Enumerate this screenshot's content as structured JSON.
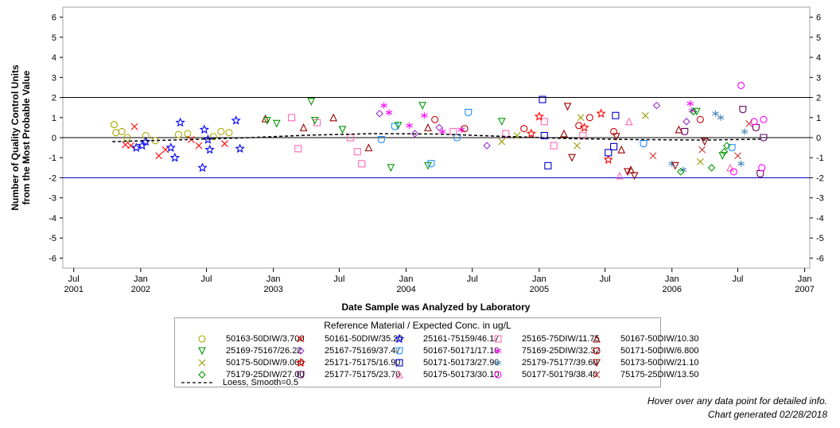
{
  "chart_data": {
    "type": "scatter",
    "title": "",
    "xlabel": "Date Sample was Analyzed by Laboratory",
    "ylabel_lines": [
      "Number of Quality Control Units",
      "from the Most Probable Value"
    ],
    "ylim": [
      -6.5,
      6.5
    ],
    "yticks": [
      6,
      5,
      4,
      3,
      2,
      1,
      0,
      -1,
      -2,
      -3,
      -4,
      -5,
      -6
    ],
    "xlim": [
      "2001-06-01",
      "2007-01-15"
    ],
    "xticks": [
      {
        "date": "2001-07-01",
        "label1": "Jul",
        "label2": "2001"
      },
      {
        "date": "2002-01-01",
        "label1": "Jan",
        "label2": "2002"
      },
      {
        "date": "2002-07-01",
        "label1": "Jul",
        "label2": ""
      },
      {
        "date": "2003-01-01",
        "label1": "Jan",
        "label2": "2003"
      },
      {
        "date": "2003-07-01",
        "label1": "Jul",
        "label2": ""
      },
      {
        "date": "2004-01-01",
        "label1": "Jan",
        "label2": "2004"
      },
      {
        "date": "2004-07-01",
        "label1": "Jul",
        "label2": ""
      },
      {
        "date": "2005-01-01",
        "label1": "Jan",
        "label2": "2005"
      },
      {
        "date": "2005-07-01",
        "label1": "Jul",
        "label2": ""
      },
      {
        "date": "2006-01-01",
        "label1": "Jan",
        "label2": "2006"
      },
      {
        "date": "2006-07-01",
        "label1": "Jul",
        "label2": ""
      },
      {
        "date": "2007-01-01",
        "label1": "Jan",
        "label2": "2007"
      }
    ],
    "reference_lines": [
      {
        "y": 2,
        "color": "#000000"
      },
      {
        "y": 0,
        "color": "#000000"
      },
      {
        "y": -2,
        "color": "#0000cc"
      }
    ],
    "legend": {
      "title": "Reference Material / Expected Conc. in ug/L",
      "placement": "bottom",
      "loess_label": "Loess, Smooth=0.5"
    },
    "loess": [
      {
        "x": "2001-10-15",
        "y": -0.2
      },
      {
        "x": "2002-04-01",
        "y": -0.12
      },
      {
        "x": "2002-10-01",
        "y": -0.02
      },
      {
        "x": "2003-04-01",
        "y": 0.12
      },
      {
        "x": "2003-10-01",
        "y": 0.2
      },
      {
        "x": "2004-04-01",
        "y": 0.18
      },
      {
        "x": "2004-10-01",
        "y": 0.06
      },
      {
        "x": "2005-04-01",
        "y": -0.05
      },
      {
        "x": "2005-10-01",
        "y": -0.1
      },
      {
        "x": "2006-04-01",
        "y": -0.12
      },
      {
        "x": "2006-09-01",
        "y": -0.08
      }
    ],
    "series": [
      {
        "name": "50163-50DIW/3.700",
        "color": "#a8a800",
        "marker": "circle",
        "points": [
          {
            "x": "2001-10-20",
            "y": 0.65
          },
          {
            "x": "2001-10-25",
            "y": 0.25
          },
          {
            "x": "2001-11-10",
            "y": 0.3
          },
          {
            "x": "2001-11-25",
            "y": 0.0
          },
          {
            "x": "2002-01-15",
            "y": 0.1
          },
          {
            "x": "2002-02-10",
            "y": -0.15
          },
          {
            "x": "2002-04-15",
            "y": 0.15
          },
          {
            "x": "2002-05-10",
            "y": 0.2
          },
          {
            "x": "2002-07-20",
            "y": 0.05
          },
          {
            "x": "2002-08-10",
            "y": 0.3
          },
          {
            "x": "2002-09-01",
            "y": 0.25
          }
        ]
      },
      {
        "name": "50161-50DIW/35.20",
        "color": "#ff0000",
        "marker": "x",
        "points": [
          {
            "x": "2001-11-20",
            "y": -0.35
          },
          {
            "x": "2001-12-05",
            "y": -0.4
          },
          {
            "x": "2001-12-15",
            "y": 0.55
          },
          {
            "x": "2002-02-20",
            "y": -0.9
          },
          {
            "x": "2002-03-10",
            "y": -0.6
          },
          {
            "x": "2002-05-20",
            "y": -0.1
          },
          {
            "x": "2002-06-10",
            "y": -0.4
          },
          {
            "x": "2002-08-20",
            "y": -0.3
          }
        ]
      },
      {
        "name": "25161-75159/46.17",
        "color": "#0000ff",
        "marker": "star",
        "points": [
          {
            "x": "2001-12-20",
            "y": -0.5
          },
          {
            "x": "2002-01-05",
            "y": -0.4
          },
          {
            "x": "2002-01-15",
            "y": -0.2
          },
          {
            "x": "2002-03-25",
            "y": -0.5
          },
          {
            "x": "2002-04-05",
            "y": -1.0
          },
          {
            "x": "2002-04-20",
            "y": 0.75
          },
          {
            "x": "2002-06-20",
            "y": -1.5
          },
          {
            "x": "2002-06-25",
            "y": 0.4
          },
          {
            "x": "2002-07-05",
            "y": -0.1
          },
          {
            "x": "2002-07-10",
            "y": -0.6
          },
          {
            "x": "2002-09-20",
            "y": 0.85
          },
          {
            "x": "2002-10-01",
            "y": -0.55
          }
        ]
      },
      {
        "name": "25165-75DIW/11.75",
        "color": "#ff69b4",
        "marker": "square",
        "points": [
          {
            "x": "2003-02-20",
            "y": 1.0
          },
          {
            "x": "2003-03-10",
            "y": -0.55
          },
          {
            "x": "2003-05-01",
            "y": 0.75
          },
          {
            "x": "2003-08-01",
            "y": 0.0
          },
          {
            "x": "2003-08-20",
            "y": -0.7
          },
          {
            "x": "2003-09-01",
            "y": -1.3
          },
          {
            "x": "2004-05-10",
            "y": 0.3
          },
          {
            "x": "2004-10-01",
            "y": 0.2
          },
          {
            "x": "2005-01-15",
            "y": 0.8
          },
          {
            "x": "2005-02-10",
            "y": -0.4
          },
          {
            "x": "2005-05-01",
            "y": 0.1
          }
        ]
      },
      {
        "name": "50167-50DIW/10.30",
        "color": "#990000",
        "marker": "triangle",
        "points": [
          {
            "x": "2002-12-10",
            "y": 0.95
          },
          {
            "x": "2003-03-25",
            "y": 0.5
          },
          {
            "x": "2003-06-15",
            "y": 1.0
          },
          {
            "x": "2003-09-20",
            "y": -0.5
          },
          {
            "x": "2004-03-01",
            "y": 0.5
          },
          {
            "x": "2005-03-10",
            "y": 0.2
          },
          {
            "x": "2005-08-15",
            "y": -0.6
          },
          {
            "x": "2005-09-10",
            "y": -1.6
          },
          {
            "x": "2006-01-20",
            "y": 0.4
          }
        ]
      },
      {
        "name": "25169-75167/26.22",
        "color": "#009900",
        "marker": "triangle-down",
        "points": [
          {
            "x": "2002-12-15",
            "y": 0.85
          },
          {
            "x": "2003-01-10",
            "y": 0.7
          },
          {
            "x": "2003-04-15",
            "y": 1.8
          },
          {
            "x": "2003-04-25",
            "y": 0.85
          },
          {
            "x": "2003-07-10",
            "y": 0.4
          },
          {
            "x": "2003-11-20",
            "y": -1.5
          },
          {
            "x": "2003-12-10",
            "y": 0.6
          },
          {
            "x": "2004-02-15",
            "y": 1.6
          },
          {
            "x": "2004-03-01",
            "y": -1.4
          },
          {
            "x": "2004-09-20",
            "y": 0.8
          },
          {
            "x": "2006-03-10",
            "y": 1.3
          },
          {
            "x": "2006-05-20",
            "y": -0.9
          }
        ]
      },
      {
        "name": "25167-75169/37.47",
        "color": "#9932cc",
        "marker": "diamond",
        "points": [
          {
            "x": "2003-10-20",
            "y": 1.2
          },
          {
            "x": "2004-01-25",
            "y": 0.2
          },
          {
            "x": "2004-04-01",
            "y": 0.5
          },
          {
            "x": "2004-08-10",
            "y": -0.4
          },
          {
            "x": "2005-11-20",
            "y": 1.6
          },
          {
            "x": "2006-02-10",
            "y": 0.8
          }
        ]
      },
      {
        "name": "50167-50171/17.10",
        "color": "#1e90ff",
        "marker": "shield",
        "points": [
          {
            "x": "2003-10-25",
            "y": -0.1
          },
          {
            "x": "2003-12-01",
            "y": 0.55
          },
          {
            "x": "2004-03-10",
            "y": -1.3
          },
          {
            "x": "2004-05-20",
            "y": 0.0
          },
          {
            "x": "2004-06-20",
            "y": 1.25
          },
          {
            "x": "2005-10-15",
            "y": -0.3
          },
          {
            "x": "2006-06-15",
            "y": -0.5
          }
        ]
      },
      {
        "name": "75169-25DIW/32.32",
        "color": "#ff00ff",
        "marker": "asterisk",
        "points": [
          {
            "x": "2003-11-01",
            "y": 1.6
          },
          {
            "x": "2003-11-15",
            "y": 1.25
          },
          {
            "x": "2004-01-10",
            "y": 0.6
          },
          {
            "x": "2004-02-20",
            "y": 1.1
          },
          {
            "x": "2004-04-10",
            "y": 0.3
          },
          {
            "x": "2004-06-01",
            "y": 0.4
          },
          {
            "x": "2006-02-20",
            "y": 1.7
          },
          {
            "x": "2006-02-25",
            "y": 1.35
          }
        ]
      },
      {
        "name": "50171-50DIW/6.800",
        "color": "#cc0000",
        "marker": "circle",
        "points": [
          {
            "x": "2004-03-20",
            "y": 0.9
          },
          {
            "x": "2004-06-10",
            "y": 0.45
          },
          {
            "x": "2004-11-20",
            "y": 0.45
          },
          {
            "x": "2005-04-20",
            "y": 0.6
          },
          {
            "x": "2005-05-20",
            "y": 1.0
          },
          {
            "x": "2005-07-25",
            "y": 0.3
          },
          {
            "x": "2006-03-20",
            "y": 0.9
          }
        ]
      },
      {
        "name": "50175-50DIW/9.000",
        "color": "#999900",
        "marker": "x",
        "points": [
          {
            "x": "2004-09-20",
            "y": -0.2
          },
          {
            "x": "2004-11-01",
            "y": 0.1
          },
          {
            "x": "2005-04-15",
            "y": -0.4
          },
          {
            "x": "2005-04-25",
            "y": 1.0
          },
          {
            "x": "2005-10-20",
            "y": 1.1
          },
          {
            "x": "2006-03-20",
            "y": -1.2
          }
        ]
      },
      {
        "name": "25171-75175/16.90",
        "color": "#ff0000",
        "marker": "star",
        "points": [
          {
            "x": "2004-12-10",
            "y": 0.2
          },
          {
            "x": "2005-01-01",
            "y": 1.05
          },
          {
            "x": "2005-05-05",
            "y": 0.5
          },
          {
            "x": "2005-06-20",
            "y": 1.2
          },
          {
            "x": "2005-07-10",
            "y": -1.1
          }
        ]
      },
      {
        "name": "50171-50173/27.90",
        "color": "#0000cc",
        "marker": "square",
        "points": [
          {
            "x": "2005-01-10",
            "y": 1.9
          },
          {
            "x": "2005-01-15",
            "y": 0.1
          },
          {
            "x": "2005-01-25",
            "y": -1.4
          },
          {
            "x": "2005-07-10",
            "y": -0.75
          },
          {
            "x": "2005-07-25",
            "y": -0.45
          },
          {
            "x": "2005-07-30",
            "y": 1.1
          }
        ]
      },
      {
        "name": "25179-75177/39.60",
        "color": "#4682b4",
        "marker": "asterisk",
        "points": [
          {
            "x": "2006-01-01",
            "y": -1.3
          },
          {
            "x": "2006-02-01",
            "y": -1.6
          },
          {
            "x": "2006-05-01",
            "y": 1.2
          },
          {
            "x": "2006-05-15",
            "y": 1.0
          },
          {
            "x": "2006-07-10",
            "y": -1.3
          },
          {
            "x": "2006-07-20",
            "y": 0.3
          }
        ]
      },
      {
        "name": "50173-50DIW/21.10",
        "color": "#990000",
        "marker": "triangle-down",
        "points": [
          {
            "x": "2005-03-20",
            "y": 1.55
          },
          {
            "x": "2005-04-01",
            "y": -1.0
          },
          {
            "x": "2005-08-01",
            "y": 0.05
          },
          {
            "x": "2005-09-01",
            "y": -1.7
          },
          {
            "x": "2005-09-20",
            "y": -1.9
          },
          {
            "x": "2006-01-10",
            "y": -1.4
          },
          {
            "x": "2006-04-01",
            "y": -0.2
          }
        ]
      },
      {
        "name": "75179-25DIW/27.00",
        "color": "#009900",
        "marker": "diamond",
        "points": [
          {
            "x": "2006-01-25",
            "y": -1.7
          },
          {
            "x": "2006-03-01",
            "y": 1.3
          },
          {
            "x": "2006-04-20",
            "y": -1.5
          },
          {
            "x": "2006-05-25",
            "y": -0.7
          },
          {
            "x": "2006-06-01",
            "y": -0.4
          }
        ]
      },
      {
        "name": "25177-75175/23.70",
        "color": "#660066",
        "marker": "shield",
        "points": [
          {
            "x": "2006-02-05",
            "y": 0.3
          },
          {
            "x": "2006-07-15",
            "y": 1.4
          },
          {
            "x": "2006-08-20",
            "y": 0.5
          },
          {
            "x": "2006-09-01",
            "y": -1.8
          },
          {
            "x": "2006-09-10",
            "y": 0.0
          }
        ]
      },
      {
        "name": "50175-50173/30.10",
        "color": "#ff69b4",
        "marker": "triangle",
        "points": [
          {
            "x": "2005-08-10",
            "y": -1.9
          },
          {
            "x": "2005-09-05",
            "y": 0.8
          },
          {
            "x": "2006-06-10",
            "y": -1.5
          }
        ]
      },
      {
        "name": "50177-50179/38.40",
        "color": "#ff00ff",
        "marker": "circle",
        "points": [
          {
            "x": "2006-07-10",
            "y": 2.6
          },
          {
            "x": "2006-08-15",
            "y": 0.8
          },
          {
            "x": "2006-09-05",
            "y": -1.5
          },
          {
            "x": "2006-09-10",
            "y": 0.9
          },
          {
            "x": "2006-06-20",
            "y": -1.7
          }
        ]
      },
      {
        "name": "75175-25DIW/13.50",
        "color": "#cc3333",
        "marker": "x",
        "points": [
          {
            "x": "2005-11-10",
            "y": -0.9
          },
          {
            "x": "2006-03-25",
            "y": -0.6
          },
          {
            "x": "2006-07-01",
            "y": -0.9
          },
          {
            "x": "2006-08-01",
            "y": 0.7
          }
        ]
      }
    ]
  },
  "footer": {
    "hover_text": "Hover over any data point for detailed info.",
    "generated_text": "Chart generated 02/28/2018"
  }
}
